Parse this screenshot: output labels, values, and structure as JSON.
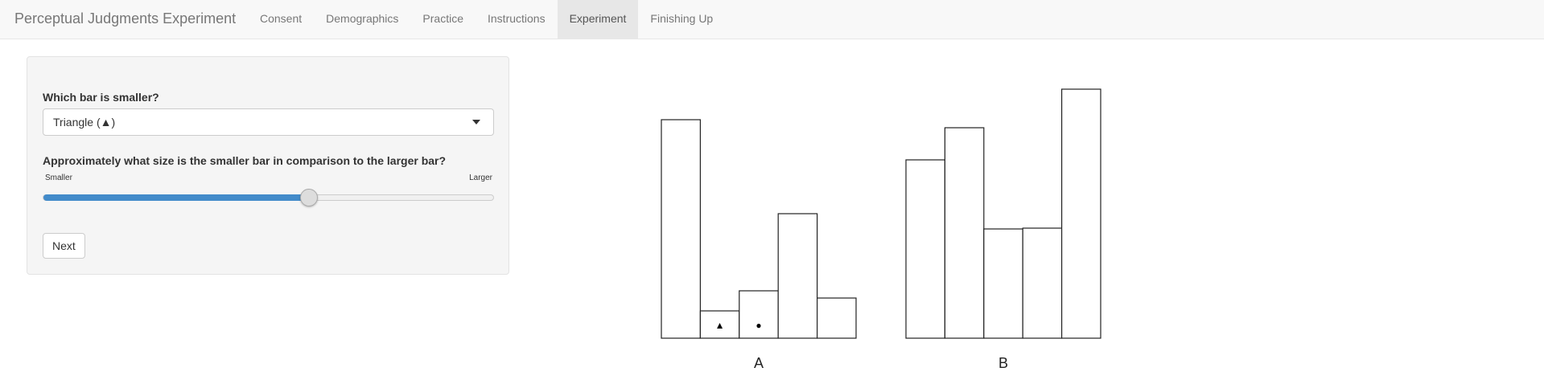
{
  "navbar": {
    "brand": "Perceptual Judgments Experiment",
    "items": [
      {
        "label": "Consent",
        "active": false
      },
      {
        "label": "Demographics",
        "active": false
      },
      {
        "label": "Practice",
        "active": false
      },
      {
        "label": "Instructions",
        "active": false
      },
      {
        "label": "Experiment",
        "active": true
      },
      {
        "label": "Finishing Up",
        "active": false
      }
    ]
  },
  "form": {
    "question1": "Which bar is smaller?",
    "select_value": "Triangle (▲)",
    "question2": "Approximately what size is the smaller bar in comparison to the larger bar?",
    "slider": {
      "min_label": "Smaller",
      "max_label": "Larger",
      "value": 0.59
    },
    "next_button": "Next"
  },
  "chart_data": {
    "type": "bar",
    "groups": [
      {
        "label": "A",
        "values": [
          272,
          34,
          59,
          155,
          50
        ],
        "markers": [
          null,
          "▲",
          "●",
          null,
          null
        ]
      },
      {
        "label": "B",
        "values": [
          222,
          262,
          136,
          137,
          310
        ],
        "markers": [
          null,
          null,
          null,
          null,
          null
        ]
      }
    ],
    "ylim": [
      0,
      310
    ]
  }
}
